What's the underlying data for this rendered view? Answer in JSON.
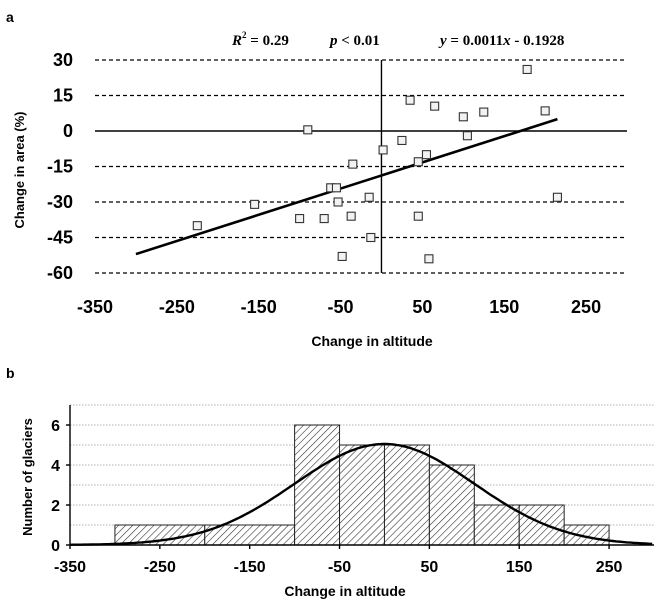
{
  "panel_a_label": "a",
  "panel_b_label": "b",
  "chart_data": [
    {
      "type": "scatter",
      "panel": "a",
      "xlabel": "Change in altitude",
      "ylabel": "Change in area  (%)",
      "xlim": [
        -350,
        300
      ],
      "ylim": [
        -60,
        30
      ],
      "xticks": [
        -350,
        -250,
        -150,
        -50,
        50,
        150,
        250
      ],
      "yticks": [
        30,
        15,
        0,
        -15,
        -30,
        -45,
        -60
      ],
      "grid": "horizontal dashed",
      "annotations": {
        "r2_sym": "R",
        "r2_exp": "2",
        "r2_val": " = 0.29",
        "p_sym": "p",
        "p_val": " < 0.01",
        "eq_y": "y",
        "eq_mid": " = 0.0011",
        "eq_x": "x",
        "eq_end": " - 0.1928"
      },
      "trendline": {
        "x": [
          -300,
          215
        ],
        "y": [
          -52,
          5
        ]
      },
      "points": [
        {
          "x": -225,
          "y": -40
        },
        {
          "x": -155,
          "y": -31
        },
        {
          "x": -100,
          "y": -37
        },
        {
          "x": -90,
          "y": 0.5
        },
        {
          "x": -70,
          "y": -37
        },
        {
          "x": -62,
          "y": -24
        },
        {
          "x": -55,
          "y": -24
        },
        {
          "x": -53,
          "y": -30
        },
        {
          "x": -48,
          "y": -53
        },
        {
          "x": -37,
          "y": -36
        },
        {
          "x": -35,
          "y": -14
        },
        {
          "x": -15,
          "y": -28
        },
        {
          "x": -13,
          "y": -45
        },
        {
          "x": 2,
          "y": -8
        },
        {
          "x": 25,
          "y": -4
        },
        {
          "x": 35,
          "y": 13
        },
        {
          "x": 45,
          "y": -13
        },
        {
          "x": 45,
          "y": -36
        },
        {
          "x": 55,
          "y": -10
        },
        {
          "x": 58,
          "y": -54
        },
        {
          "x": 65,
          "y": 10.5
        },
        {
          "x": 100,
          "y": 6
        },
        {
          "x": 105,
          "y": -2
        },
        {
          "x": 125,
          "y": 8
        },
        {
          "x": 178,
          "y": 26
        },
        {
          "x": 200,
          "y": 8.5
        },
        {
          "x": 215,
          "y": -28
        }
      ]
    },
    {
      "type": "bar",
      "panel": "b",
      "xlabel": "Change in altitude",
      "ylabel": "Number of glaciers",
      "xlim": [
        -350,
        300
      ],
      "ylim": [
        0,
        7
      ],
      "xticks": [
        -350,
        -250,
        -150,
        -50,
        50,
        150,
        250
      ],
      "yticks": [
        0,
        2,
        4,
        6
      ],
      "grid": "horizontal dotted",
      "bin_edges": [
        -300,
        -200,
        -100,
        -50,
        0,
        50,
        100,
        150,
        200,
        250
      ],
      "values": [
        1,
        1,
        6,
        5,
        5,
        4,
        2,
        2,
        1
      ],
      "normal_fit": {
        "mean": 0,
        "sd": 100,
        "peak": 5.05
      }
    }
  ]
}
